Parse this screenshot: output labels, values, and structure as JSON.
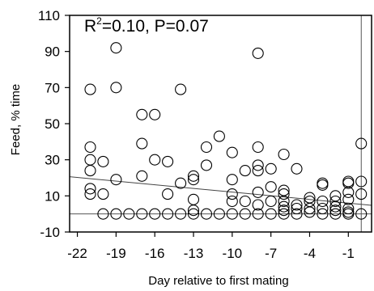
{
  "chart_data": {
    "type": "scatter",
    "xlabel": "Day relative to first mating",
    "ylabel": "Feed, % time",
    "xlim": [
      -22.6,
      0.8
    ],
    "ylim": [
      -10,
      110
    ],
    "x_ticks": [
      -22,
      -19,
      -16,
      -13,
      -10,
      -7,
      -4,
      -1
    ],
    "y_ticks": [
      -10,
      10,
      30,
      50,
      70,
      90,
      110
    ],
    "x_tick_labels": [
      "-22",
      "-19",
      "-16",
      "-13",
      "-10",
      "-7",
      "-4",
      "-1"
    ],
    "y_tick_labels": [
      "-10",
      "10",
      "30",
      "50",
      "70",
      "90",
      "110"
    ],
    "annotation": {
      "r2_prefix": "R",
      "r2_exponent": "2",
      "r2_value": "=0.10, P=0.07"
    },
    "reference_lines": {
      "horizontal_y": 0,
      "vertical_x": 0
    },
    "regression_line": {
      "x": [
        -22.6,
        0.8
      ],
      "y": [
        20.6,
        4.8
      ]
    },
    "grid": false,
    "marker": "open-circle",
    "points": [
      {
        "x": -21,
        "y": 69
      },
      {
        "x": -21,
        "y": 37
      },
      {
        "x": -21,
        "y": 30
      },
      {
        "x": -21,
        "y": 24
      },
      {
        "x": -21,
        "y": 14
      },
      {
        "x": -21,
        "y": 11
      },
      {
        "x": -20,
        "y": 29
      },
      {
        "x": -20,
        "y": 11
      },
      {
        "x": -20,
        "y": 0
      },
      {
        "x": -19,
        "y": 92
      },
      {
        "x": -19,
        "y": 70
      },
      {
        "x": -19,
        "y": 19
      },
      {
        "x": -19,
        "y": 0
      },
      {
        "x": -18,
        "y": 0
      },
      {
        "x": -17,
        "y": 55
      },
      {
        "x": -17,
        "y": 39
      },
      {
        "x": -17,
        "y": 21
      },
      {
        "x": -17,
        "y": 0
      },
      {
        "x": -16,
        "y": 55
      },
      {
        "x": -16,
        "y": 30
      },
      {
        "x": -16,
        "y": 0
      },
      {
        "x": -15,
        "y": 29
      },
      {
        "x": -15,
        "y": 11
      },
      {
        "x": -15,
        "y": 0
      },
      {
        "x": -14,
        "y": 69
      },
      {
        "x": -14,
        "y": 17
      },
      {
        "x": -14,
        "y": 0
      },
      {
        "x": -13,
        "y": 21
      },
      {
        "x": -13,
        "y": 19
      },
      {
        "x": -13,
        "y": 8
      },
      {
        "x": -13,
        "y": 2
      },
      {
        "x": -13,
        "y": 0
      },
      {
        "x": -12,
        "y": 37
      },
      {
        "x": -12,
        "y": 27
      },
      {
        "x": -12,
        "y": 0
      },
      {
        "x": -11,
        "y": 43
      },
      {
        "x": -11,
        "y": 0
      },
      {
        "x": -10,
        "y": 34
      },
      {
        "x": -10,
        "y": 19
      },
      {
        "x": -10,
        "y": 11
      },
      {
        "x": -10,
        "y": 7
      },
      {
        "x": -10,
        "y": 0
      },
      {
        "x": -9,
        "y": 24
      },
      {
        "x": -9,
        "y": 7
      },
      {
        "x": -9,
        "y": 0
      },
      {
        "x": -8,
        "y": 89
      },
      {
        "x": -8,
        "y": 37
      },
      {
        "x": -8,
        "y": 27
      },
      {
        "x": -8,
        "y": 24
      },
      {
        "x": -8,
        "y": 12
      },
      {
        "x": -8,
        "y": 5
      },
      {
        "x": -8,
        "y": 0
      },
      {
        "x": -7,
        "y": 25
      },
      {
        "x": -7,
        "y": 15
      },
      {
        "x": -7,
        "y": 7
      },
      {
        "x": -7,
        "y": 0
      },
      {
        "x": -6,
        "y": 33
      },
      {
        "x": -6,
        "y": 13
      },
      {
        "x": -6,
        "y": 11
      },
      {
        "x": -6,
        "y": 7
      },
      {
        "x": -6,
        "y": 4
      },
      {
        "x": -6,
        "y": 2
      },
      {
        "x": -6,
        "y": 0
      },
      {
        "x": -5,
        "y": 25
      },
      {
        "x": -5,
        "y": 5
      },
      {
        "x": -5,
        "y": 3
      },
      {
        "x": -5,
        "y": 0
      },
      {
        "x": -4,
        "y": 9
      },
      {
        "x": -4,
        "y": 7
      },
      {
        "x": -4,
        "y": 3
      },
      {
        "x": -4,
        "y": 1
      },
      {
        "x": -3,
        "y": 17
      },
      {
        "x": -3,
        "y": 16
      },
      {
        "x": -3,
        "y": 7
      },
      {
        "x": -3,
        "y": 3
      },
      {
        "x": -3,
        "y": 0
      },
      {
        "x": -2,
        "y": 10
      },
      {
        "x": -2,
        "y": 7
      },
      {
        "x": -2,
        "y": 4
      },
      {
        "x": -2,
        "y": 2
      },
      {
        "x": -2,
        "y": 0
      },
      {
        "x": -1,
        "y": 18
      },
      {
        "x": -1,
        "y": 17
      },
      {
        "x": -1,
        "y": 12
      },
      {
        "x": -1,
        "y": 8
      },
      {
        "x": -1,
        "y": 3
      },
      {
        "x": -1,
        "y": 1
      },
      {
        "x": -1,
        "y": 0
      },
      {
        "x": 0,
        "y": 39
      },
      {
        "x": 0,
        "y": 18
      },
      {
        "x": 0,
        "y": 11
      },
      {
        "x": 0,
        "y": 0
      }
    ]
  }
}
